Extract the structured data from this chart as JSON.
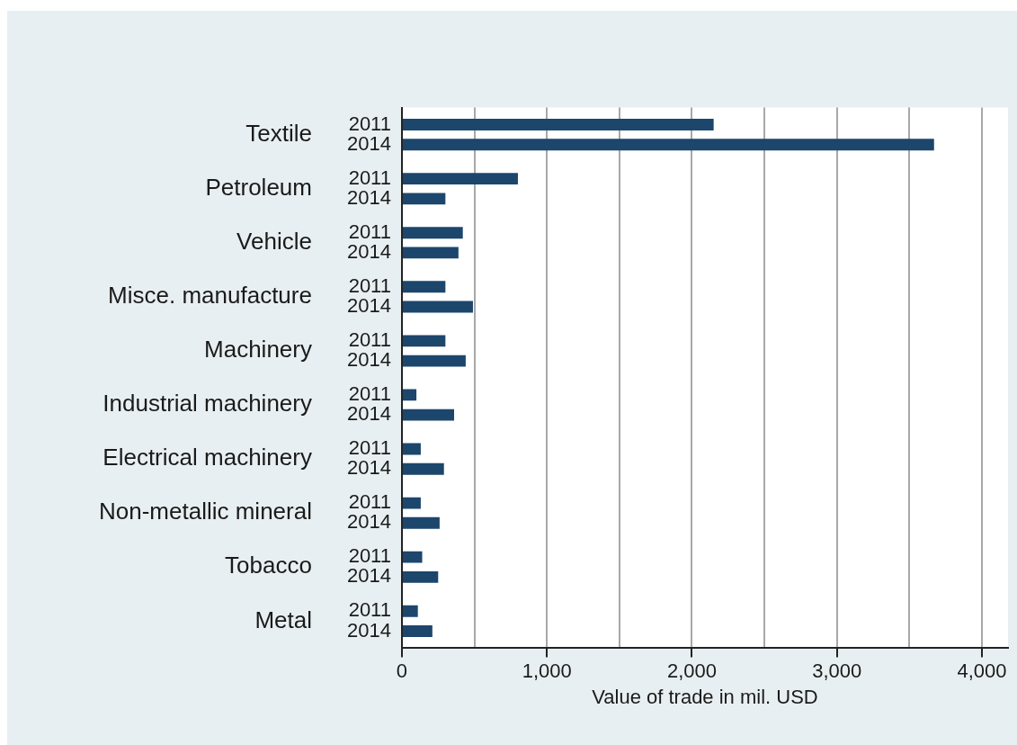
{
  "chart_data": {
    "type": "bar",
    "orientation": "horizontal",
    "xlabel": "Value of trade in mil. USD",
    "categories": [
      "Textile",
      "Petroleum",
      "Vehicle",
      "Misce. manufacture",
      "Machinery",
      "Industrial machinery",
      "Electrical machinery",
      "Non-metallic mineral",
      "Tobacco",
      "Metal"
    ],
    "series": [
      {
        "name": "2011",
        "color": "#1c466c",
        "values": [
          2150,
          800,
          420,
          300,
          300,
          100,
          130,
          130,
          140,
          110
        ]
      },
      {
        "name": "2014",
        "color": "#1c466c",
        "values": [
          3670,
          300,
          390,
          490,
          440,
          360,
          290,
          260,
          250,
          210
        ]
      }
    ],
    "xlim": [
      0,
      4180
    ],
    "xticks": [
      0,
      {
        "value": 500,
        "label": null
      },
      {
        "value": 1000,
        "label": "1,000"
      },
      {
        "value": 1500,
        "label": null
      },
      {
        "value": 2000,
        "label": "2,000"
      },
      {
        "value": 2500,
        "label": null
      },
      {
        "value": 3000,
        "label": "3,000"
      },
      {
        "value": 3500,
        "label": null
      },
      {
        "value": 4000,
        "label": "4,000"
      }
    ],
    "grid": "x",
    "legend": false
  }
}
